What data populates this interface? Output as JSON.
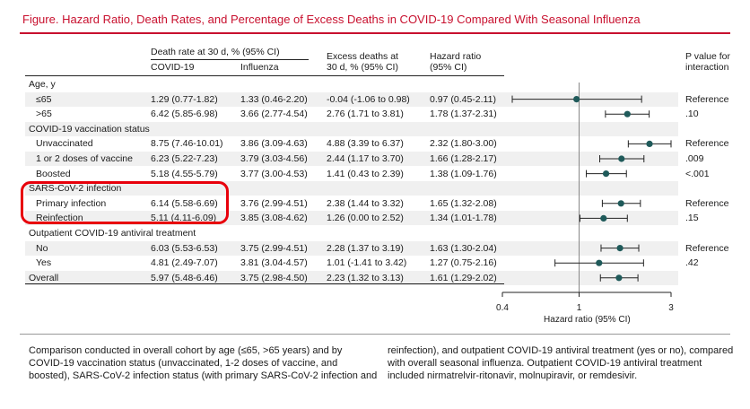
{
  "title": "Figure. Hazard Ratio, Death Rates, and Percentage of Excess Deaths in COVID-19 Compared With Seasonal Influenza",
  "headers": {
    "death_rate": "Death rate at 30 d, % (95% CI)",
    "covid": "COVID-19",
    "influenza": "Influenza",
    "excess_line1": "Excess deaths at",
    "excess_line2": "30 d, % (95% CI)",
    "hr_line1": "Hazard ratio",
    "hr_line2": "(95% CI)",
    "p_line1": "P value for",
    "p_line2": "interaction"
  },
  "sections": [
    {
      "label": "Age, y",
      "rows": [
        {
          "label": "≤65",
          "covid": "1.29 (0.77-1.82)",
          "influenza": "1.33 (0.46-2.20)",
          "excess": "-0.04 (-1.06 to 0.98)",
          "hr": "0.97 (0.45-2.11)",
          "p": "Reference",
          "hr_val": 0.97,
          "hr_lo": 0.45,
          "hr_hi": 2.11
        },
        {
          "label": ">65",
          "covid": "6.42 (5.85-6.98)",
          "influenza": "3.66 (2.77-4.54)",
          "excess": "2.76 (1.71 to 3.81)",
          "hr": "1.78 (1.37-2.31)",
          "p": ".10",
          "hr_val": 1.78,
          "hr_lo": 1.37,
          "hr_hi": 2.31
        }
      ]
    },
    {
      "label": "COVID-19 vaccination status",
      "rows": [
        {
          "label": "Unvaccinated",
          "covid": "8.75 (7.46-10.01)",
          "influenza": "3.86 (3.09-4.63)",
          "excess": "4.88 (3.39 to 6.37)",
          "hr": "2.32 (1.80-3.00)",
          "p": "Reference",
          "hr_val": 2.32,
          "hr_lo": 1.8,
          "hr_hi": 3.0
        },
        {
          "label": "1 or 2 doses of vaccine",
          "covid": "6.23 (5.22-7.23)",
          "influenza": "3.79 (3.03-4.56)",
          "excess": "2.44 (1.17 to 3.70)",
          "hr": "1.66 (1.28-2.17)",
          "p": ".009",
          "hr_val": 1.66,
          "hr_lo": 1.28,
          "hr_hi": 2.17
        },
        {
          "label": "Boosted",
          "covid": "5.18 (4.55-5.79)",
          "influenza": "3.77 (3.00-4.53)",
          "excess": "1.41 (0.43 to 2.39)",
          "hr": "1.38 (1.09-1.76)",
          "p": "<.001",
          "hr_val": 1.38,
          "hr_lo": 1.09,
          "hr_hi": 1.76
        }
      ]
    },
    {
      "label": "SARS-CoV-2 infection",
      "rows": [
        {
          "label": "Primary infection",
          "covid": "6.14 (5.58-6.69)",
          "influenza": "3.76 (2.99-4.51)",
          "excess": "2.38 (1.44 to 3.32)",
          "hr": "1.65 (1.32-2.08)",
          "p": "Reference",
          "hr_val": 1.65,
          "hr_lo": 1.32,
          "hr_hi": 2.08
        },
        {
          "label": "Reinfection",
          "covid": "5.11 (4.11-6.09)",
          "influenza": "3.85 (3.08-4.62)",
          "excess": "1.26 (0.00 to 2.52)",
          "hr": "1.34 (1.01-1.78)",
          "p": ".15",
          "hr_val": 1.34,
          "hr_lo": 1.01,
          "hr_hi": 1.78
        }
      ]
    },
    {
      "label": "Outpatient COVID-19 antiviral treatment",
      "rows": [
        {
          "label": "No",
          "covid": "6.03 (5.53-6.53)",
          "influenza": "3.75 (2.99-4.51)",
          "excess": "2.28 (1.37 to 3.19)",
          "hr": "1.63 (1.30-2.04)",
          "p": "Reference",
          "hr_val": 1.63,
          "hr_lo": 1.3,
          "hr_hi": 2.04
        },
        {
          "label": "Yes",
          "covid": "4.81 (2.49-7.07)",
          "influenza": "3.81 (3.04-4.57)",
          "excess": "1.01 (-1.41 to 3.42)",
          "hr": "1.27 (0.75-2.16)",
          "p": ".42",
          "hr_val": 1.27,
          "hr_lo": 0.75,
          "hr_hi": 2.16
        }
      ]
    }
  ],
  "overall": {
    "label": "Overall",
    "covid": "5.97 (5.48-6.46)",
    "influenza": "3.75 (2.98-4.50)",
    "excess": "2.23 (1.32 to 3.13)",
    "hr": "1.61 (1.29-2.02)",
    "p": "",
    "hr_val": 1.61,
    "hr_lo": 1.29,
    "hr_hi": 2.02
  },
  "forest_axis": {
    "ticks": [
      "0.4",
      "1",
      "3"
    ],
    "tick_values": [
      0.4,
      1,
      3
    ],
    "label": "Hazard ratio (95% CI)",
    "scale": "log",
    "xlim": [
      0.4,
      3
    ],
    "reference_line": 1
  },
  "colors": {
    "title": "#c8102e",
    "marker": "#1f5a5a",
    "highlight": "#e8000b"
  },
  "caption": {
    "left": "Comparison conducted in overall cohort by age (≤65, >65 years) and by COVID-19 vaccination status (unvaccinated, 1-2 doses of vaccine, and boosted), SARS-CoV-2 infection status (with primary SARS-CoV-2 infection and",
    "right": "reinfection), and outpatient COVID-19 antiviral treatment (yes or no), compared with overall seasonal influenza. Outpatient COVID-19 antiviral treatment included nirmatrelvir-ritonavir, molnupiravir, or remdesivir."
  }
}
